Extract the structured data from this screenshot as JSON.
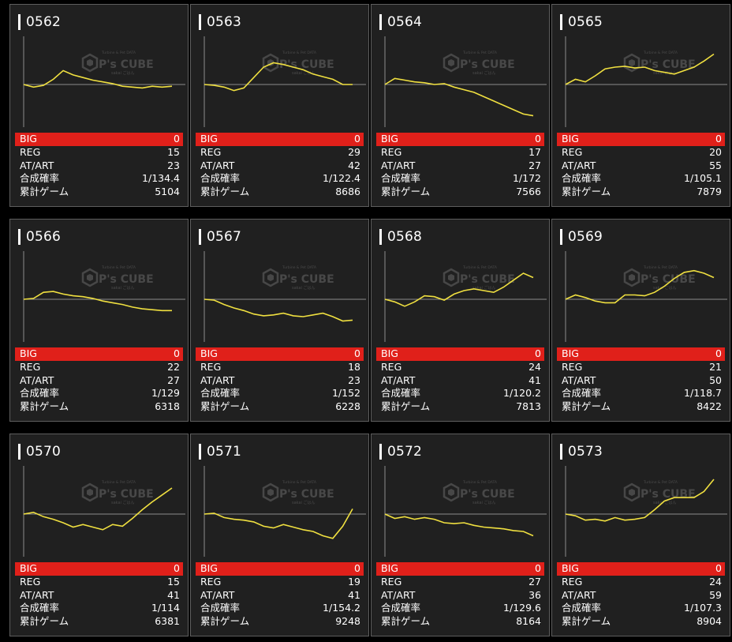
{
  "stat_labels": {
    "big": "BIG",
    "reg": "REG",
    "at_art": "AT/ART",
    "combined_prob": "合成確率",
    "total_games": "累計ゲーム"
  },
  "watermark": {
    "brand": "P's CUBE",
    "top_line": "Turbine & Pet DATA",
    "sub_line": "sakai ごはん"
  },
  "colors": {
    "big_row": "#e0201a",
    "line": "#f0e040",
    "background": "#202020",
    "border": "#5e5e5e"
  },
  "machines": [
    {
      "id": "0562",
      "big": "0",
      "reg": "15",
      "at_art": "23",
      "prob": "1/134.4",
      "games": "5104",
      "trend": [
        0,
        -3,
        -1,
        6,
        16,
        11,
        8,
        5,
        3,
        1,
        -2,
        -3,
        -4,
        -2,
        -3,
        -2
      ]
    },
    {
      "id": "0563",
      "big": "0",
      "reg": "29",
      "at_art": "42",
      "prob": "1/122.4",
      "games": "8686",
      "trend": [
        0,
        -1,
        -3,
        -7,
        -4,
        8,
        20,
        25,
        23,
        20,
        17,
        12,
        9,
        6,
        0,
        0
      ]
    },
    {
      "id": "0564",
      "big": "0",
      "reg": "17",
      "at_art": "27",
      "prob": "1/172",
      "games": "7566",
      "trend": [
        0,
        7,
        5,
        3,
        2,
        0,
        1,
        -3,
        -6,
        -9,
        -14,
        -19,
        -24,
        -29,
        -34,
        -36
      ]
    },
    {
      "id": "0565",
      "big": "0",
      "reg": "20",
      "at_art": "55",
      "prob": "1/105.1",
      "games": "7879",
      "trend": [
        0,
        6,
        3,
        10,
        18,
        20,
        21,
        19,
        20,
        16,
        14,
        12,
        16,
        20,
        27,
        35
      ]
    },
    {
      "id": "0566",
      "big": "0",
      "reg": "22",
      "at_art": "27",
      "prob": "1/129",
      "games": "6318",
      "trend": [
        0,
        1,
        8,
        9,
        6,
        4,
        3,
        1,
        -2,
        -4,
        -6,
        -9,
        -11,
        -12,
        -13,
        -13
      ]
    },
    {
      "id": "0567",
      "big": "0",
      "reg": "18",
      "at_art": "23",
      "prob": "1/152",
      "games": "6228",
      "trend": [
        0,
        -1,
        -6,
        -10,
        -13,
        -17,
        -19,
        -18,
        -16,
        -19,
        -20,
        -18,
        -16,
        -20,
        -25,
        -24
      ]
    },
    {
      "id": "0568",
      "big": "0",
      "reg": "24",
      "at_art": "41",
      "prob": "1/120.2",
      "games": "7813",
      "trend": [
        0,
        -3,
        -8,
        -3,
        4,
        3,
        -1,
        6,
        10,
        12,
        10,
        8,
        14,
        22,
        30,
        25
      ]
    },
    {
      "id": "0569",
      "big": "0",
      "reg": "21",
      "at_art": "50",
      "prob": "1/118.7",
      "games": "8422",
      "trend": [
        0,
        5,
        2,
        -2,
        -4,
        -4,
        5,
        5,
        4,
        8,
        15,
        24,
        31,
        33,
        30,
        25
      ]
    },
    {
      "id": "0570",
      "big": "0",
      "reg": "15",
      "at_art": "41",
      "prob": "1/114",
      "games": "6381",
      "trend": [
        0,
        2,
        -3,
        -6,
        -10,
        -15,
        -12,
        -15,
        -18,
        -12,
        -14,
        -5,
        5,
        14,
        22,
        30
      ]
    },
    {
      "id": "0571",
      "big": "0",
      "reg": "19",
      "at_art": "41",
      "prob": "1/154.2",
      "games": "9248",
      "trend": [
        0,
        1,
        -4,
        -6,
        -7,
        -9,
        -14,
        -16,
        -12,
        -15,
        -18,
        -20,
        -25,
        -28,
        -14,
        6
      ]
    },
    {
      "id": "0572",
      "big": "0",
      "reg": "27",
      "at_art": "36",
      "prob": "1/129.6",
      "games": "8164",
      "trend": [
        0,
        -5,
        -3,
        -6,
        -4,
        -6,
        -10,
        -11,
        -10,
        -13,
        -15,
        -16,
        -17,
        -19,
        -20,
        -25
      ]
    },
    {
      "id": "0573",
      "big": "0",
      "reg": "24",
      "at_art": "59",
      "prob": "1/107.3",
      "games": "8904",
      "trend": [
        0,
        -2,
        -7,
        -6,
        -8,
        -4,
        -7,
        -6,
        -4,
        5,
        15,
        19,
        19,
        19,
        26,
        40
      ]
    }
  ]
}
